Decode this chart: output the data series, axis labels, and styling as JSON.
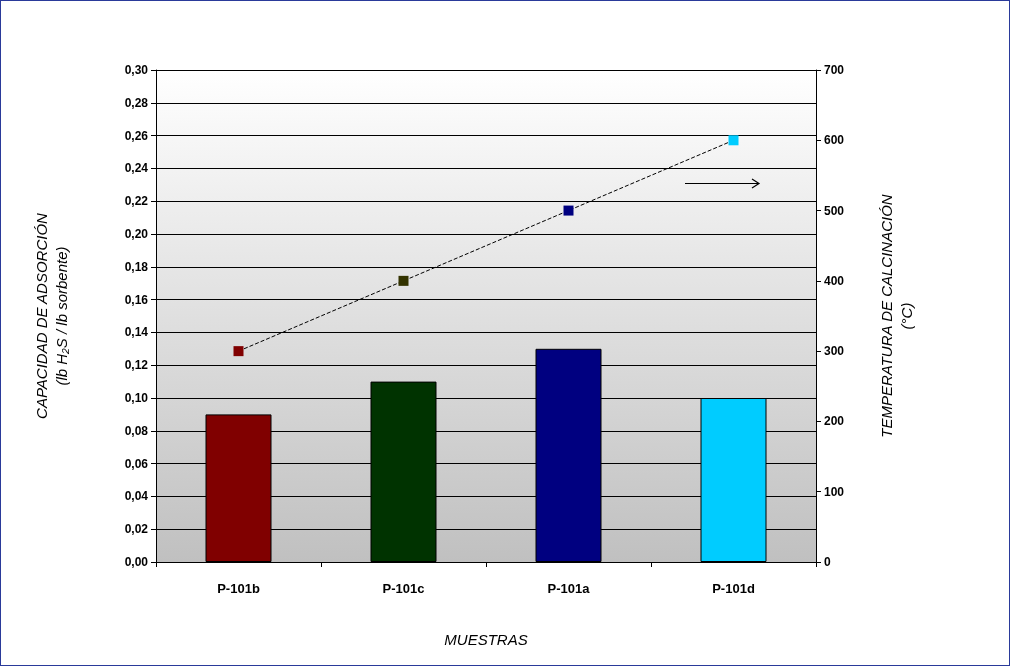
{
  "chart_data": {
    "type": "bar",
    "xlabel": "MUESTRAS",
    "ylabel": "CAPACIDAD DE ADSORCIÓN\n(lb H₂S / lb sorbente)",
    "y2label": "TEMPERATURA DE CALCINACIÓN\n(°C)",
    "categories": [
      "P-101b",
      "P-101c",
      "P-101a",
      "P-101d"
    ],
    "series": [
      {
        "values": [
          0.09,
          0.11,
          0.13,
          0.1
        ],
        "colors": [
          "#800000",
          "#003300",
          "#000080",
          "#00ccff"
        ]
      },
      {
        "type": "line",
        "axis": "y2",
        "color": "#000000",
        "colors": [
          "#800000",
          "#333300",
          "#000080",
          "#00ccff"
        ],
        "values": [
          300,
          400,
          500,
          600
        ],
        "marker": "square",
        "line_style": "dashed"
      }
    ],
    "ylim": [
      0,
      0.3
    ],
    "yticks": [
      {
        "value": 0,
        "label": "0,00"
      },
      {
        "value": 0.02,
        "label": "0,02"
      },
      {
        "value": 0.04,
        "label": "0,04"
      },
      {
        "value": 0.06,
        "label": "0,06"
      },
      {
        "value": 0.08,
        "label": "0,08"
      },
      {
        "value": 0.1,
        "label": "0,10"
      },
      {
        "value": 0.12,
        "label": "0,12"
      },
      {
        "value": 0.14,
        "label": "0,14"
      },
      {
        "value": 0.16,
        "label": "0,16"
      },
      {
        "value": 0.18,
        "label": "0,18"
      },
      {
        "value": 0.2,
        "label": "0,20"
      },
      {
        "value": 0.22,
        "label": "0,22"
      },
      {
        "value": 0.24,
        "label": "0,24"
      },
      {
        "value": 0.26,
        "label": "0,26"
      },
      {
        "value": 0.28,
        "label": "0,28"
      },
      {
        "value": 0.3,
        "label": "0,30"
      }
    ],
    "y2lim": [
      0,
      700
    ],
    "y2ticks": [
      0,
      100,
      200,
      300,
      400,
      500,
      600,
      700
    ],
    "grid": "y"
  }
}
